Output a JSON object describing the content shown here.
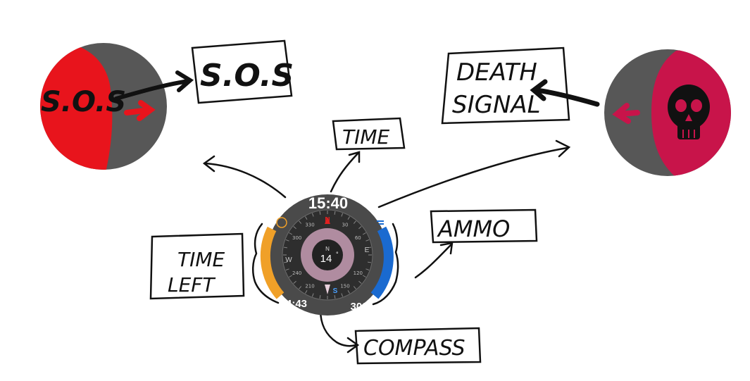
{
  "labels": {
    "sos_box": "S.O.S",
    "death_box_line1": "DEATH",
    "death_box_line2": "SIGNAL",
    "time_box": "TIME",
    "ammo_box": "AMMO",
    "time_left_line1": "TIME",
    "time_left_line2": "LEFT",
    "compass_box": "COMPASS"
  },
  "sos_orb": {
    "text": "S.O.S",
    "fill_color": "#e8141c",
    "shell_color": "#575757"
  },
  "death_orb": {
    "icon": "skull-icon",
    "fill_color": "#c8144a",
    "shell_color": "#575757"
  },
  "hud": {
    "time": "15:40",
    "time_left": "4:43",
    "ammo": "300",
    "heading": "14",
    "heading_unit": "°",
    "heading_cardinal": "N",
    "time_left_color": "#f0a028",
    "ammo_color": "#1a6ad0",
    "ring_color": "#4a4a4a",
    "compass": {
      "north": "N",
      "east": "E",
      "south": "S",
      "west": "W",
      "ticks": [
        "30",
        "60",
        "120",
        "150",
        "210",
        "240",
        "300",
        "330"
      ]
    }
  }
}
